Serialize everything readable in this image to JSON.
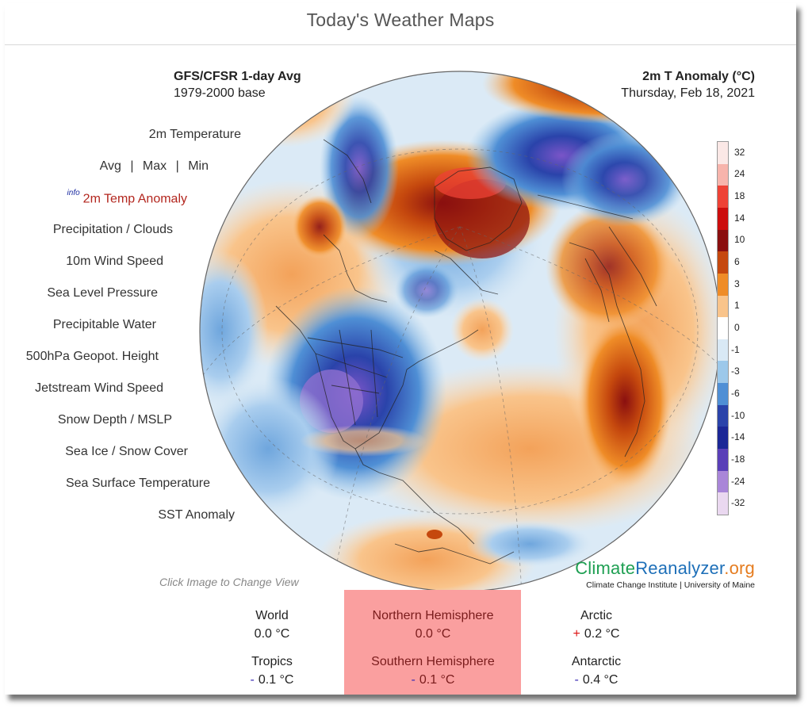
{
  "header": {
    "title": "Today's Weather Maps"
  },
  "map_info": {
    "model": "GFS/CFSR 1-day Avg",
    "base": "1979-2000 base",
    "variable": "2m T Anomaly (°C)",
    "date": "Thursday, Feb 18, 2021"
  },
  "menu": {
    "temperature": "2m Temperature",
    "avg": "Avg",
    "max": "Max",
    "min": "Min",
    "separator": "|",
    "info_tag": "info",
    "temp_anomaly": "2m Temp Anomaly",
    "precip": "Precipitation / Clouds",
    "wind10m": "10m Wind Speed",
    "slp": "Sea Level Pressure",
    "pwat": "Precipitable Water",
    "geopot": "500hPa Geopot. Height",
    "jetstream": "Jetstream Wind Speed",
    "snow_mslp": "Snow Depth / MSLP",
    "seaice": "Sea Ice / Snow Cover",
    "sst": "Sea Surface Temperature",
    "sst_anom": "SST Anomaly"
  },
  "legend": {
    "labels": [
      "32",
      "24",
      "18",
      "14",
      "10",
      "6",
      "3",
      "1",
      "0",
      "-1",
      "-3",
      "-6",
      "-10",
      "-14",
      "-18",
      "-24",
      "-32"
    ],
    "colors": [
      "#fbe8e6",
      "#f7b4ac",
      "#ee4236",
      "#cc0d0d",
      "#8a0f0f",
      "#c5480e",
      "#ef8c27",
      "#f9c48b",
      "#ffffff",
      "#d9e9f5",
      "#9cc8ea",
      "#4f8fd5",
      "#2a43aa",
      "#1b2796",
      "#5a3fb8",
      "#a986d8",
      "#ead8f0"
    ]
  },
  "hint": "Click Image to Change View",
  "brand": {
    "part1": "Climate",
    "part2": "Reanalyzer",
    "part3": ".org",
    "sub": "Climate Change Institute | University of Maine"
  },
  "stats": {
    "world": {
      "name": "World",
      "sign": "",
      "value": "0.0 °C"
    },
    "nh": {
      "name": "Northern Hemisphere",
      "sign": "",
      "value": "0.0 °C"
    },
    "arctic": {
      "name": "Arctic",
      "sign": "+",
      "value": "0.2 °C"
    },
    "tropics": {
      "name": "Tropics",
      "sign": "-",
      "value": "0.1 °C"
    },
    "sh": {
      "name": "Southern Hemisphere",
      "sign": "-",
      "value": "0.1 °C"
    },
    "antarctic": {
      "name": "Antarctic",
      "sign": "-",
      "value": "0.4 °C"
    }
  }
}
